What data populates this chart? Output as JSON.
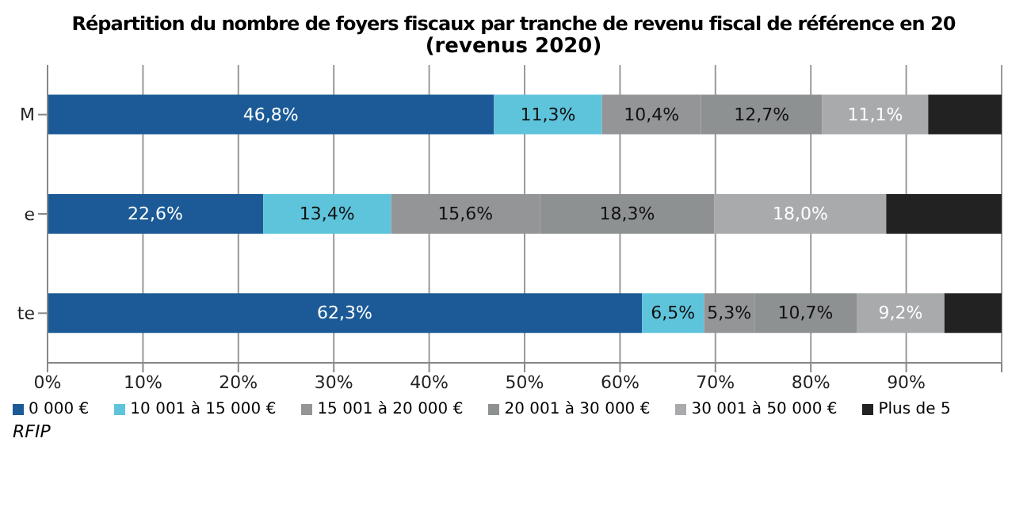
{
  "chart_data": {
    "type": "bar",
    "orientation": "horizontal",
    "stacked": true,
    "title": "Répartition du nombre de foyers fiscaux par tranche de revenu fiscal de référence en 20",
    "subtitle": "(revenus 2020)",
    "categories": [
      "M",
      "e",
      "te"
    ],
    "series": [
      {
        "name": "0 000 €",
        "color": "#1b5a96",
        "values": [
          46.8,
          22.6,
          62.3
        ],
        "value_labels": [
          "46,8%",
          "22,6%",
          "62,3%"
        ]
      },
      {
        "name": "10 001 à 15 000 €",
        "color": "#5ec4dc",
        "values": [
          11.3,
          13.4,
          6.5
        ],
        "value_labels": [
          "11,3%",
          "13,4%",
          "6,5%"
        ]
      },
      {
        "name": "15 001 à 20 000 €",
        "color": "#939596",
        "values": [
          10.4,
          15.6,
          5.3
        ],
        "value_labels": [
          "10,4%",
          "15,6%",
          "5,3%"
        ]
      },
      {
        "name": "20 001 à 30 000 €",
        "color": "#8e9192",
        "values": [
          12.7,
          18.3,
          10.7
        ],
        "value_labels": [
          "12,7%",
          "18,3%",
          "10,7%"
        ]
      },
      {
        "name": "30 001 à 50 000 €",
        "color": "#a8aaab",
        "values": [
          11.1,
          18.0,
          9.2
        ],
        "value_labels": [
          "11,1%",
          "18,0%",
          "9,2%"
        ]
      },
      {
        "name": "Plus de 5",
        "color": "#222222",
        "values": [
          7.7,
          12.1,
          6.0
        ],
        "value_labels": [
          null,
          null,
          null
        ]
      }
    ],
    "xlim": [
      0,
      100
    ],
    "xticks": [
      {
        "value": 0,
        "label": "0%"
      },
      {
        "value": 10,
        "label": "10%"
      },
      {
        "value": 20,
        "label": "20%"
      },
      {
        "value": 30,
        "label": "30%"
      },
      {
        "value": 40,
        "label": "40%"
      },
      {
        "value": 50,
        "label": "50%"
      },
      {
        "value": 60,
        "label": "60%"
      },
      {
        "value": 70,
        "label": "70%"
      },
      {
        "value": 80,
        "label": "80%"
      },
      {
        "value": 90,
        "label": "90%"
      },
      {
        "value": 100,
        "label": null
      }
    ],
    "grid": "x",
    "legend": "bottom",
    "annotations": [
      "RFIP"
    ]
  }
}
